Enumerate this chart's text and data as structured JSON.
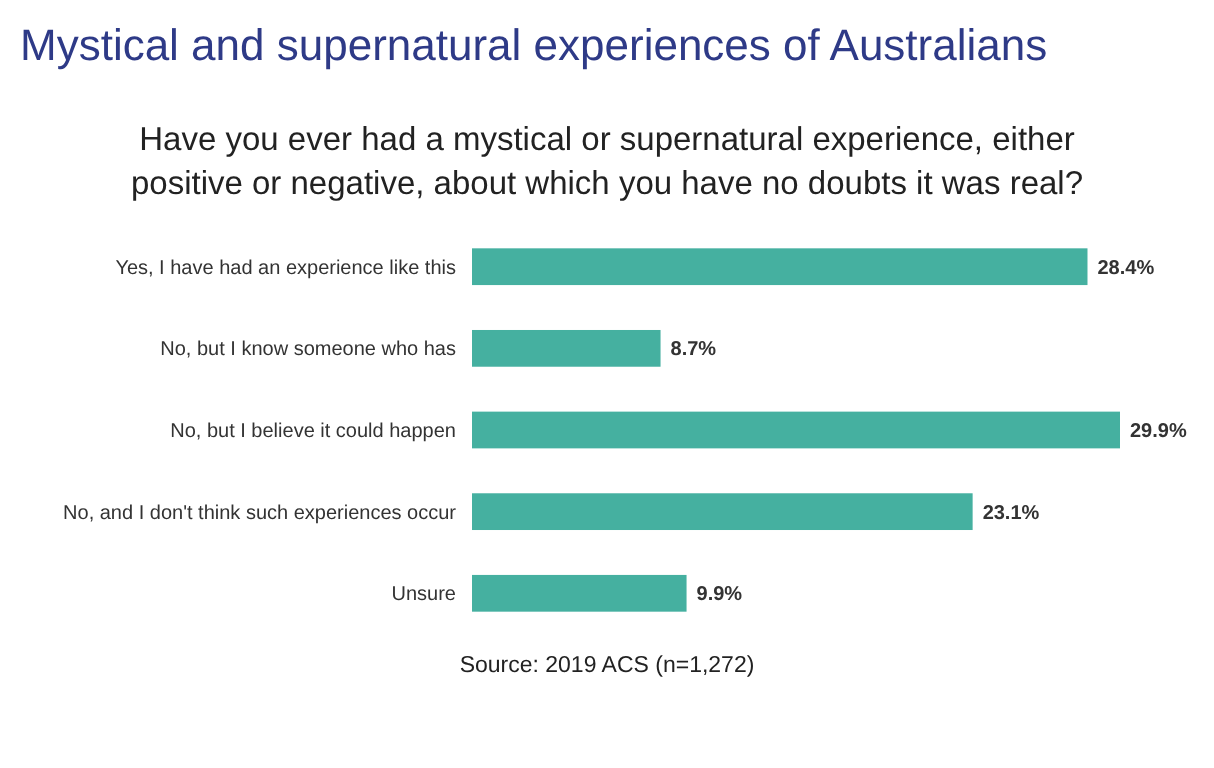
{
  "chart_data": {
    "type": "bar",
    "orientation": "horizontal",
    "title": "Mystical and supernatural experiences of Australians",
    "subtitle": "Have you ever had a mystical or supernatural experience, either positive or negative, about which you have no doubts it was real?",
    "categories": [
      "Yes, I have had an experience like this",
      "No, but I know someone who has",
      "No, but I believe it could happen",
      "No, and I don't think such experiences occur",
      "Unsure"
    ],
    "values": [
      28.4,
      8.7,
      29.9,
      23.1,
      9.9
    ],
    "value_labels": [
      "28.4%",
      "8.7%",
      "29.9%",
      "23.1%",
      "9.9%"
    ],
    "color": "#45b0a0",
    "annotations": [
      "Source: 2019 ACS (n=1,272)"
    ]
  }
}
